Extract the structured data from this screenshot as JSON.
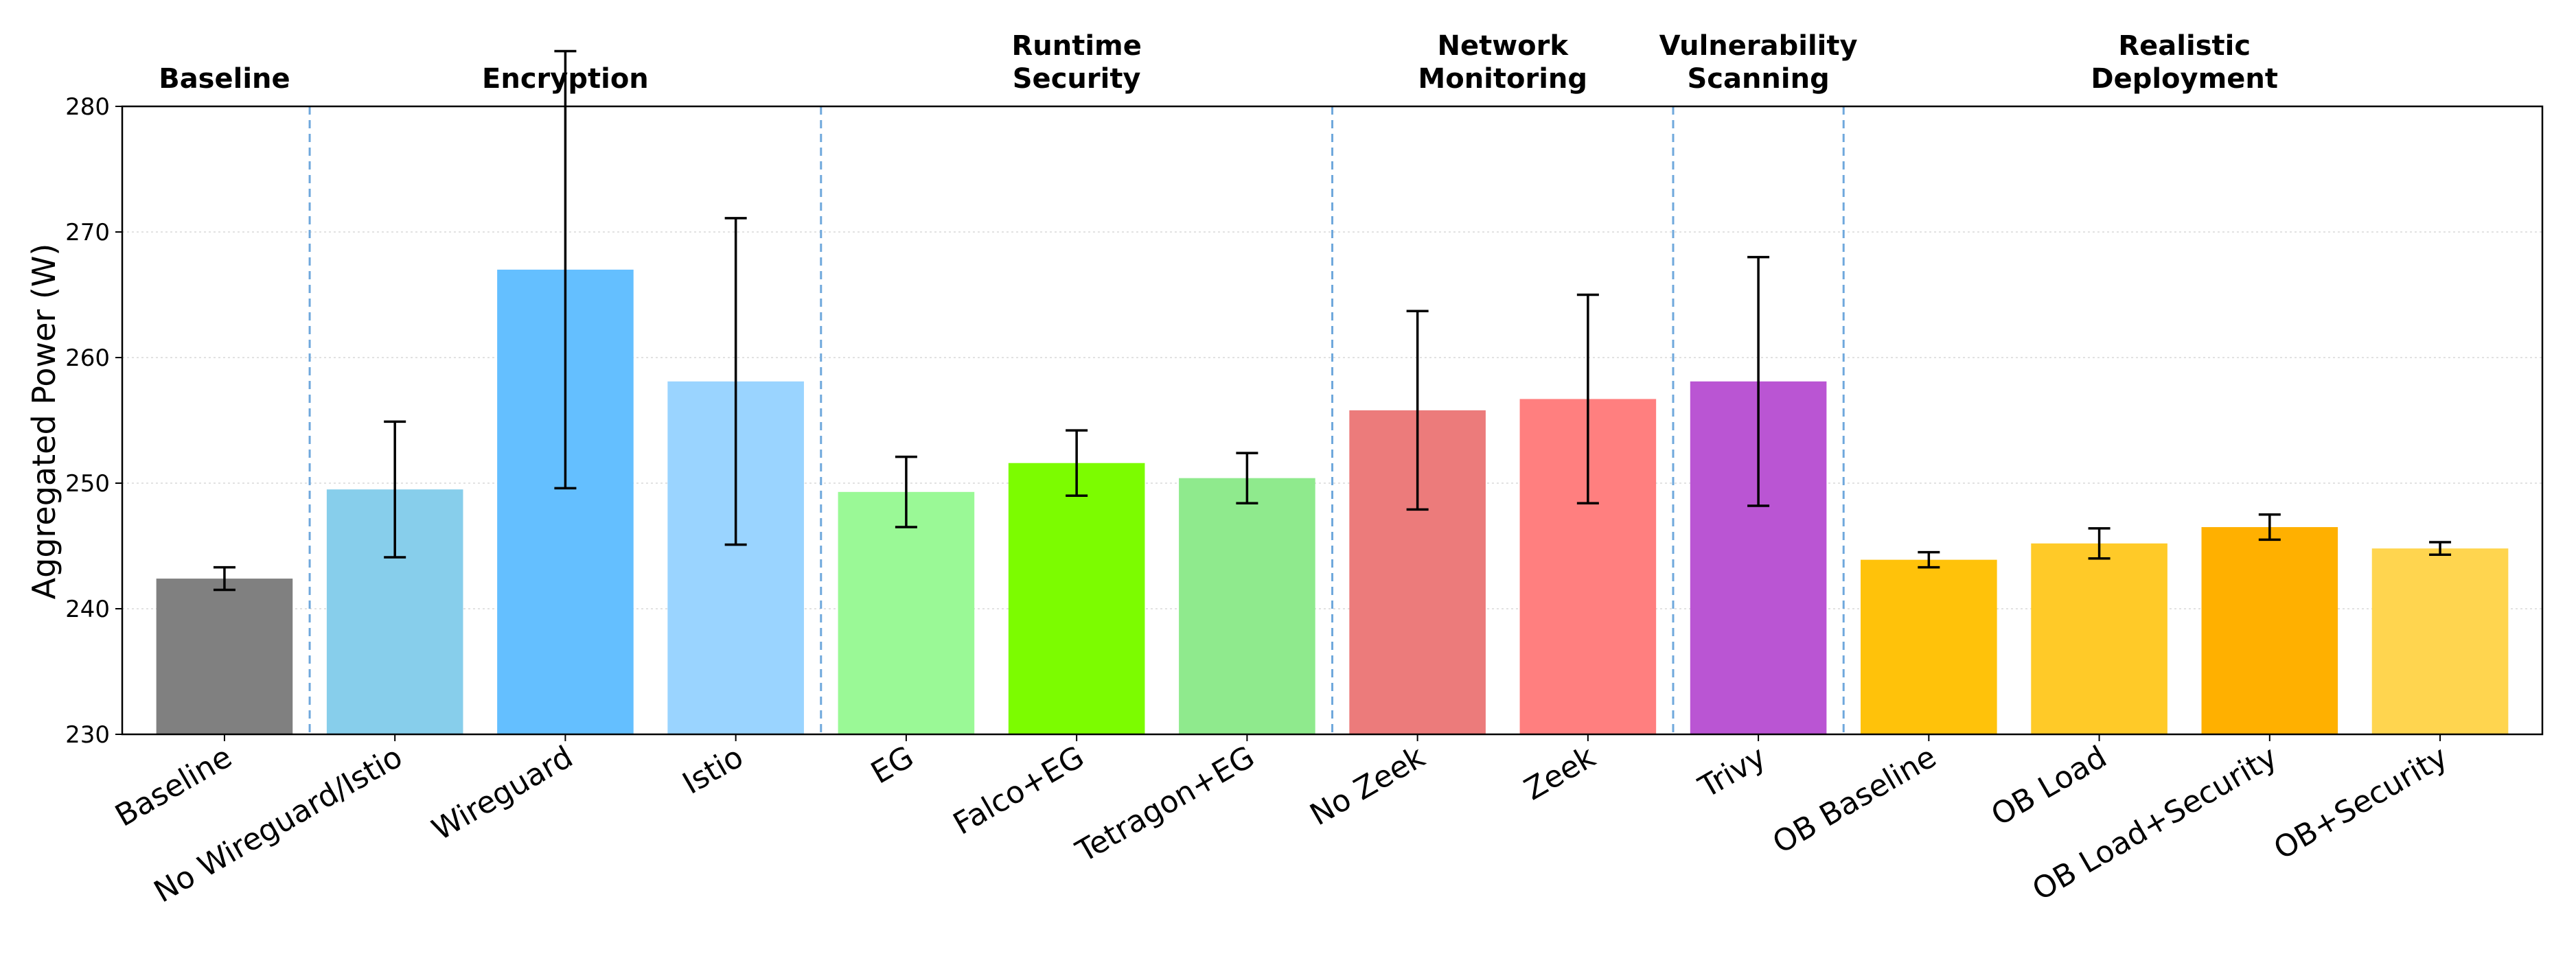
{
  "chart_data": {
    "type": "bar",
    "title": "",
    "xlabel": "",
    "ylabel": "Aggregated Power (W)",
    "ylim": [
      230,
      280
    ],
    "yticks": [
      230,
      240,
      250,
      260,
      270,
      280
    ],
    "grid": "horizontal-dotted",
    "categories": [
      "Baseline",
      "No Wireguard/Istio",
      "Wireguard",
      "Istio",
      "EG",
      "Falco+EG",
      "Tetragon+EG",
      "No Zeek",
      "Zeek",
      "Trivy",
      "OB Baseline",
      "OB Load",
      "OB Load+Security",
      "OB+Security"
    ],
    "values": [
      242.4,
      249.5,
      267.0,
      258.1,
      249.3,
      251.6,
      250.4,
      255.8,
      256.7,
      258.1,
      243.9,
      245.2,
      246.5,
      244.8
    ],
    "errors": [
      0.9,
      5.4,
      17.4,
      13.0,
      2.8,
      2.6,
      2.0,
      7.9,
      8.3,
      9.9,
      0.6,
      1.2,
      1.0,
      0.5
    ],
    "colors": [
      "#808080",
      "#87CEEB",
      "#64BFFF",
      "#9AD4FF",
      "#9AF996",
      "#7CFC00",
      "#8FEA8D",
      "#EC7B7B",
      "#FF7F7F",
      "#BA55D3",
      "#FFC20A",
      "#FFCA28",
      "#FFB000",
      "#FFD54F"
    ],
    "groups": [
      {
        "label": "Baseline",
        "start": 0,
        "end": 0
      },
      {
        "label": "Encryption",
        "start": 1,
        "end": 3
      },
      {
        "label": "Runtime\nSecurity",
        "start": 4,
        "end": 6
      },
      {
        "label": "Network\nMonitoring",
        "start": 7,
        "end": 8
      },
      {
        "label": "Vulnerability\nScanning",
        "start": 9,
        "end": 9
      },
      {
        "label": "Realistic\nDeployment",
        "start": 10,
        "end": 13
      }
    ],
    "separator_color": "#6FA8DC"
  }
}
